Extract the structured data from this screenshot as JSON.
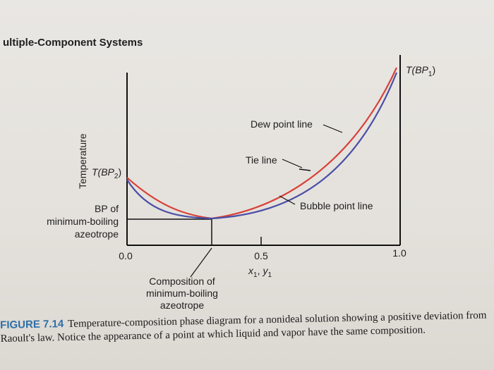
{
  "header": {
    "text": "ultiple-Component Systems"
  },
  "figure": {
    "ylabel": "Temperature",
    "labels": {
      "tbp1": "T(BP",
      "tbp1_sub": "1",
      "tbp2": "T(BP",
      "tbp2_sub": "2",
      "dew": "Dew point line",
      "tie": "Tie line",
      "bubble": "Bubble point line",
      "bp_line1": "BP of",
      "bp_line2": "minimum-boiling",
      "bp_line3": "azeotrope",
      "comp_line1": "Composition of",
      "comp_line2": "minimum-boiling",
      "comp_line3": "azeotrope",
      "xaxis_var": "x",
      "xaxis_sub1": "1",
      "yaxis_var": "y",
      "yaxis_sub1": "1",
      "paren_close": ")",
      "comma": ","
    },
    "ticks": [
      "0.0",
      "0.5",
      "1.0"
    ],
    "colors": {
      "dew": "#d8423a",
      "bubble": "#4a4fa6",
      "axis": "#111111"
    }
  },
  "caption": {
    "label": "FIGURE 7.14",
    "text": "Temperature-composition phase diagram for a nonideal solution showing a positive deviation from Raoult's law. Notice the appearance of a point at which liquid and vapor have the same composition."
  }
}
